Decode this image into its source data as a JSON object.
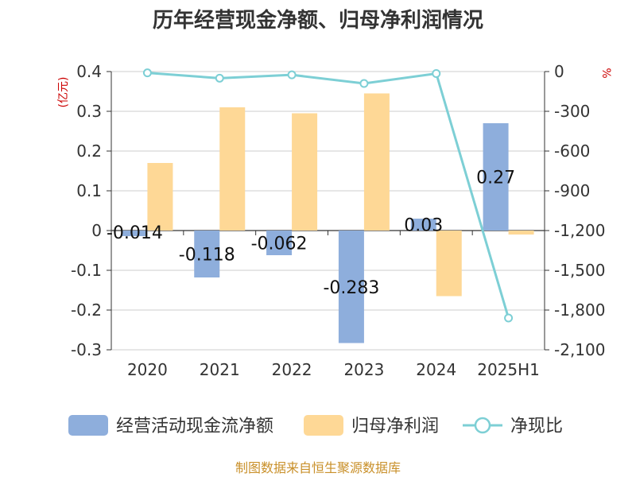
{
  "title": "历年经营现金净额、归母净利润情况",
  "source": "制图数据来自恒生聚源数据库",
  "colors": {
    "cash": "#8eaedc",
    "profit": "#fed896",
    "ratio": "#7dcfd5"
  },
  "chart_data": {
    "type": "bar",
    "categories": [
      "2020",
      "2021",
      "2022",
      "2023",
      "2024",
      "2025H1"
    ],
    "series": [
      {
        "name": "经营活动现金流净额",
        "type": "bar",
        "axis": "left",
        "values": [
          -0.014,
          -0.118,
          -0.062,
          -0.283,
          0.03,
          0.27
        ],
        "labels": [
          "-0.014",
          "-0.118",
          "-0.062",
          "-0.283",
          "0.03",
          "0.27"
        ]
      },
      {
        "name": "归母净利润",
        "type": "bar",
        "axis": "left",
        "values": [
          0.17,
          0.31,
          0.295,
          0.345,
          -0.165,
          -0.01
        ]
      },
      {
        "name": "净现比",
        "type": "line",
        "axis": "right",
        "values": [
          -10,
          -50,
          -25,
          -90,
          -15,
          -1860
        ]
      }
    ],
    "y_left": {
      "unit": "(亿元)",
      "ylim": [
        -0.3,
        0.4
      ],
      "ticks": [
        0.4,
        0.3,
        0.2,
        0.1,
        0,
        -0.1,
        -0.2,
        -0.3
      ],
      "tick_labels": [
        "0.4",
        "0.3",
        "0.2",
        "0.1",
        "0",
        "-0.1",
        "-0.2",
        "-0.3"
      ]
    },
    "y_right": {
      "unit": "%",
      "ylim": [
        -2100,
        0
      ],
      "ticks": [
        0,
        -300,
        -600,
        -900,
        -1200,
        -1500,
        -1800,
        -2100
      ],
      "tick_labels": [
        "0",
        "-300",
        "-600",
        "-900",
        "-1,200",
        "-1,500",
        "-1,800",
        "-2,100"
      ]
    },
    "grid": true,
    "legend_position": "bottom"
  }
}
